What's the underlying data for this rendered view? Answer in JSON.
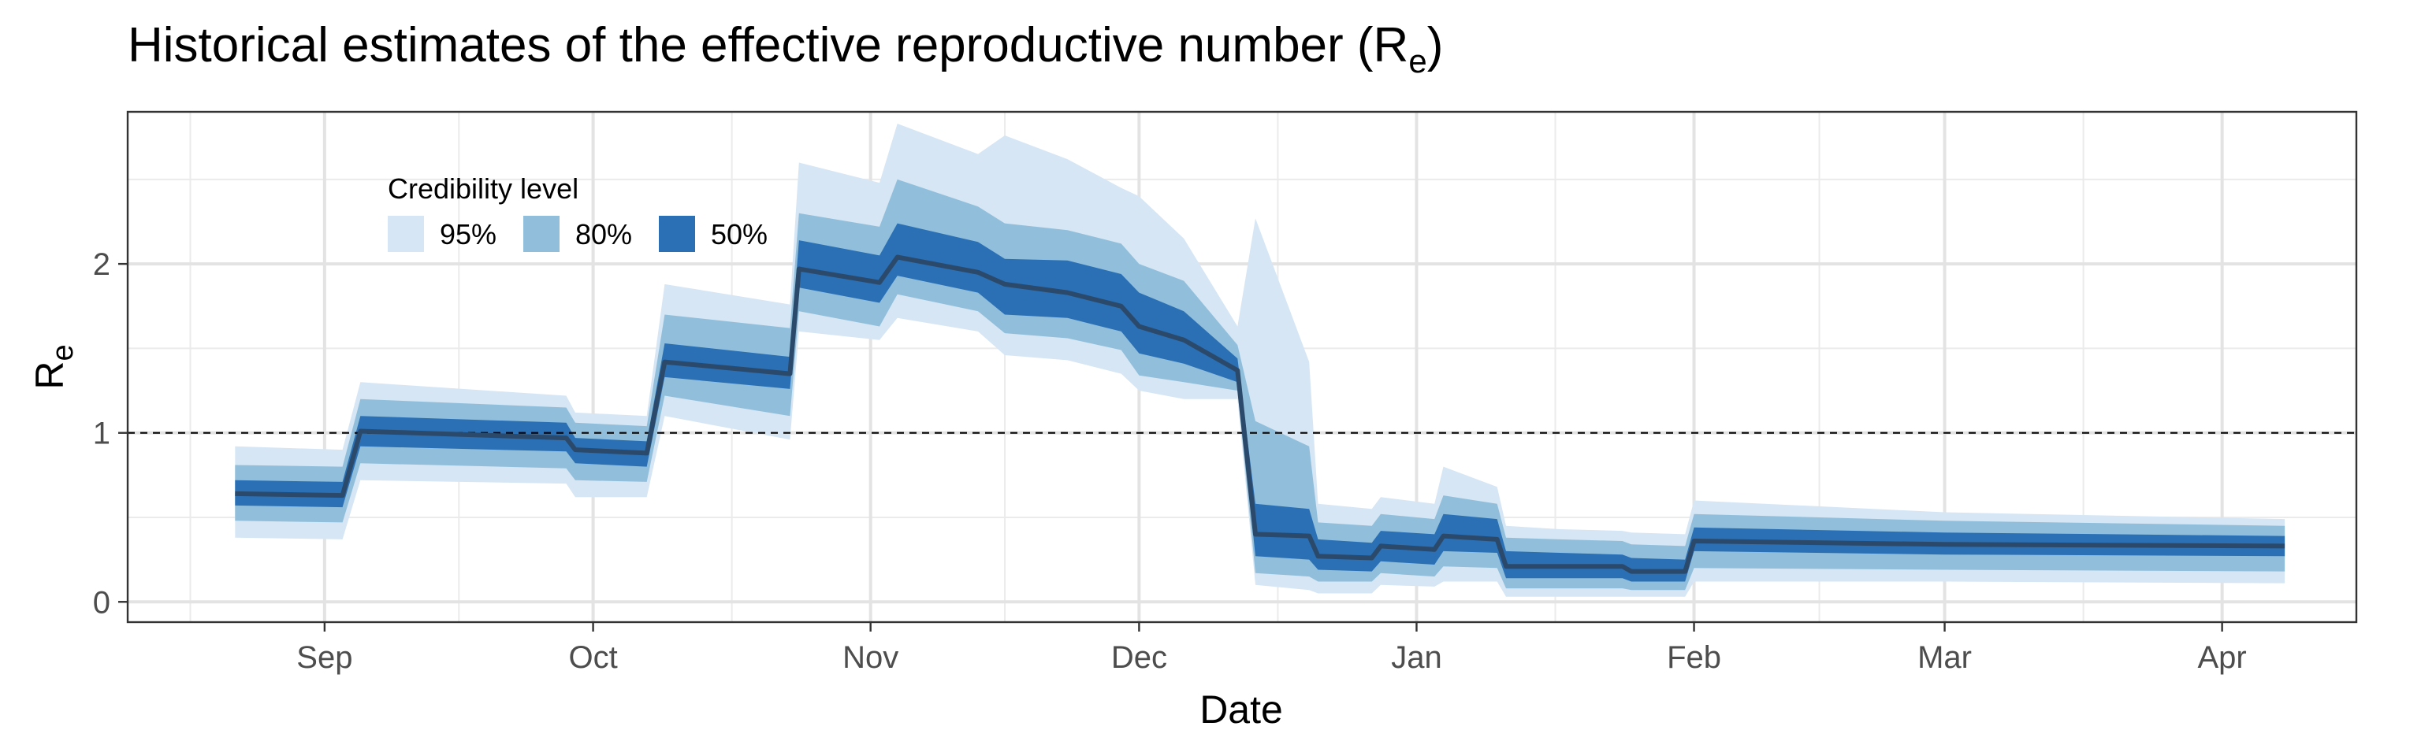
{
  "chart_data": {
    "type": "area",
    "title": "Historical estimates of the effective reproductive number (R",
    "title_sub": "e",
    "title_close": ")",
    "xlabel": "Date",
    "ylabel": "R",
    "ylabel_sub": "e",
    "x_ticks": [
      {
        "date": "2020-09-01",
        "label": "Sep"
      },
      {
        "date": "2020-10-01",
        "label": "Oct"
      },
      {
        "date": "2020-11-01",
        "label": "Nov"
      },
      {
        "date": "2020-12-01",
        "label": "Dec"
      },
      {
        "date": "2021-01-01",
        "label": "Jan"
      },
      {
        "date": "2021-02-01",
        "label": "Feb"
      },
      {
        "date": "2021-03-01",
        "label": "Mar"
      },
      {
        "date": "2021-04-01",
        "label": "Apr"
      }
    ],
    "xlim": [
      "2020-08-10",
      "2021-04-16"
    ],
    "ylim": [
      -0.12,
      2.9
    ],
    "y_ticks": [
      {
        "value": 0,
        "label": "0"
      },
      {
        "value": 1,
        "label": "1"
      },
      {
        "value": 2,
        "label": "2"
      }
    ],
    "grid": true,
    "reference_line": {
      "value": 1,
      "style": "dashed"
    },
    "legend": {
      "title": "Credibility level",
      "position": "top-left",
      "entries": [
        {
          "label": "95%",
          "color": "#d6e6f4"
        },
        {
          "label": "80%",
          "color": "#91bfdb"
        },
        {
          "label": "50%",
          "color": "#2b70b5"
        }
      ]
    },
    "median_color": "#2b4a6b",
    "series": [
      {
        "date": "2020-08-22",
        "median": 0.64,
        "lo50": 0.57,
        "hi50": 0.72,
        "lo80": 0.48,
        "hi80": 0.81,
        "lo95": 0.38,
        "hi95": 0.92
      },
      {
        "date": "2020-09-03",
        "median": 0.63,
        "lo50": 0.56,
        "hi50": 0.71,
        "lo80": 0.47,
        "hi80": 0.8,
        "lo95": 0.37,
        "hi95": 0.9
      },
      {
        "date": "2020-09-05",
        "median": 1.01,
        "lo50": 0.92,
        "hi50": 1.1,
        "lo80": 0.82,
        "hi80": 1.2,
        "lo95": 0.72,
        "hi95": 1.3
      },
      {
        "date": "2020-09-28",
        "median": 0.97,
        "lo50": 0.89,
        "hi50": 1.06,
        "lo80": 0.79,
        "hi80": 1.15,
        "lo95": 0.7,
        "hi95": 1.22
      },
      {
        "date": "2020-09-29",
        "median": 0.9,
        "lo50": 0.82,
        "hi50": 0.97,
        "lo80": 0.72,
        "hi80": 1.06,
        "lo95": 0.62,
        "hi95": 1.12
      },
      {
        "date": "2020-10-07",
        "median": 0.88,
        "lo50": 0.8,
        "hi50": 0.95,
        "lo80": 0.71,
        "hi80": 1.04,
        "lo95": 0.62,
        "hi95": 1.1
      },
      {
        "date": "2020-10-09",
        "median": 1.42,
        "lo50": 1.33,
        "hi50": 1.53,
        "lo80": 1.22,
        "hi80": 1.7,
        "lo95": 1.1,
        "hi95": 1.88
      },
      {
        "date": "2020-10-23",
        "median": 1.35,
        "lo50": 1.26,
        "hi50": 1.45,
        "lo80": 1.1,
        "hi80": 1.62,
        "lo95": 0.96,
        "hi95": 1.76
      },
      {
        "date": "2020-10-24",
        "median": 1.97,
        "lo50": 1.86,
        "hi50": 2.14,
        "lo80": 1.72,
        "hi80": 2.3,
        "lo95": 1.6,
        "hi95": 2.6
      },
      {
        "date": "2020-11-02",
        "median": 1.89,
        "lo50": 1.77,
        "hi50": 2.05,
        "lo80": 1.63,
        "hi80": 2.22,
        "lo95": 1.55,
        "hi95": 2.48
      },
      {
        "date": "2020-11-04",
        "median": 2.04,
        "lo50": 1.93,
        "hi50": 2.24,
        "lo80": 1.82,
        "hi80": 2.5,
        "lo95": 1.68,
        "hi95": 2.83
      },
      {
        "date": "2020-11-13",
        "median": 1.95,
        "lo50": 1.83,
        "hi50": 2.13,
        "lo80": 1.72,
        "hi80": 2.34,
        "lo95": 1.6,
        "hi95": 2.65
      },
      {
        "date": "2020-11-16",
        "median": 1.88,
        "lo50": 1.7,
        "hi50": 2.03,
        "lo80": 1.59,
        "hi80": 2.24,
        "lo95": 1.46,
        "hi95": 2.76
      },
      {
        "date": "2020-11-23",
        "median": 1.83,
        "lo50": 1.68,
        "hi50": 2.02,
        "lo80": 1.56,
        "hi80": 2.2,
        "lo95": 1.43,
        "hi95": 2.62
      },
      {
        "date": "2020-11-29",
        "median": 1.75,
        "lo50": 1.6,
        "hi50": 1.94,
        "lo80": 1.49,
        "hi80": 2.12,
        "lo95": 1.35,
        "hi95": 2.45
      },
      {
        "date": "2020-12-01",
        "median": 1.63,
        "lo50": 1.47,
        "hi50": 1.83,
        "lo80": 1.34,
        "hi80": 2.0,
        "lo95": 1.25,
        "hi95": 2.4
      },
      {
        "date": "2020-12-06",
        "median": 1.55,
        "lo50": 1.41,
        "hi50": 1.72,
        "lo80": 1.3,
        "hi80": 1.9,
        "lo95": 1.2,
        "hi95": 2.15
      },
      {
        "date": "2020-12-12",
        "median": 1.37,
        "lo50": 1.3,
        "hi50": 1.44,
        "lo80": 1.25,
        "hi80": 1.52,
        "lo95": 1.2,
        "hi95": 1.63
      },
      {
        "date": "2020-12-14",
        "median": 0.4,
        "lo50": 0.27,
        "hi50": 0.58,
        "lo80": 0.17,
        "hi80": 1.07,
        "lo95": 0.1,
        "hi95": 2.27
      },
      {
        "date": "2020-12-20",
        "median": 0.39,
        "lo50": 0.25,
        "hi50": 0.55,
        "lo80": 0.15,
        "hi80": 0.92,
        "lo95": 0.07,
        "hi95": 1.42
      },
      {
        "date": "2020-12-21",
        "median": 0.27,
        "lo50": 0.19,
        "hi50": 0.37,
        "lo80": 0.12,
        "hi80": 0.47,
        "lo95": 0.05,
        "hi95": 0.58
      },
      {
        "date": "2020-12-27",
        "median": 0.26,
        "lo50": 0.18,
        "hi50": 0.35,
        "lo80": 0.12,
        "hi80": 0.45,
        "lo95": 0.05,
        "hi95": 0.55
      },
      {
        "date": "2020-12-28",
        "median": 0.33,
        "lo50": 0.24,
        "hi50": 0.42,
        "lo80": 0.17,
        "hi80": 0.52,
        "lo95": 0.1,
        "hi95": 0.62
      },
      {
        "date": "2021-01-03",
        "median": 0.31,
        "lo50": 0.22,
        "hi50": 0.4,
        "lo80": 0.15,
        "hi80": 0.49,
        "lo95": 0.09,
        "hi95": 0.58
      },
      {
        "date": "2021-01-04",
        "median": 0.39,
        "lo50": 0.3,
        "hi50": 0.52,
        "lo80": 0.21,
        "hi80": 0.63,
        "lo95": 0.12,
        "hi95": 0.8
      },
      {
        "date": "2021-01-10",
        "median": 0.37,
        "lo50": 0.29,
        "hi50": 0.49,
        "lo80": 0.2,
        "hi80": 0.58,
        "lo95": 0.12,
        "hi95": 0.68
      },
      {
        "date": "2021-01-11",
        "median": 0.21,
        "lo50": 0.14,
        "hi50": 0.3,
        "lo80": 0.08,
        "hi80": 0.38,
        "lo95": 0.03,
        "hi95": 0.45
      },
      {
        "date": "2021-01-17",
        "median": 0.21,
        "lo50": 0.14,
        "hi50": 0.29,
        "lo80": 0.08,
        "hi80": 0.37,
        "lo95": 0.03,
        "hi95": 0.43
      },
      {
        "date": "2021-01-24",
        "median": 0.21,
        "lo50": 0.14,
        "hi50": 0.28,
        "lo80": 0.08,
        "hi80": 0.36,
        "lo95": 0.03,
        "hi95": 0.42
      },
      {
        "date": "2021-01-25",
        "median": 0.18,
        "lo50": 0.12,
        "hi50": 0.26,
        "lo80": 0.07,
        "hi80": 0.34,
        "lo95": 0.03,
        "hi95": 0.41
      },
      {
        "date": "2021-01-31",
        "median": 0.18,
        "lo50": 0.12,
        "hi50": 0.25,
        "lo80": 0.07,
        "hi80": 0.33,
        "lo95": 0.03,
        "hi95": 0.4
      },
      {
        "date": "2021-02-01",
        "median": 0.36,
        "lo50": 0.3,
        "hi50": 0.44,
        "lo80": 0.2,
        "hi80": 0.52,
        "lo95": 0.12,
        "hi95": 0.6
      },
      {
        "date": "2021-03-01",
        "median": 0.34,
        "lo50": 0.28,
        "hi50": 0.41,
        "lo80": 0.19,
        "hi80": 0.48,
        "lo95": 0.12,
        "hi95": 0.53
      },
      {
        "date": "2021-04-08",
        "median": 0.33,
        "lo50": 0.27,
        "hi50": 0.39,
        "lo80": 0.18,
        "hi80": 0.45,
        "lo95": 0.11,
        "hi95": 0.49
      }
    ]
  }
}
